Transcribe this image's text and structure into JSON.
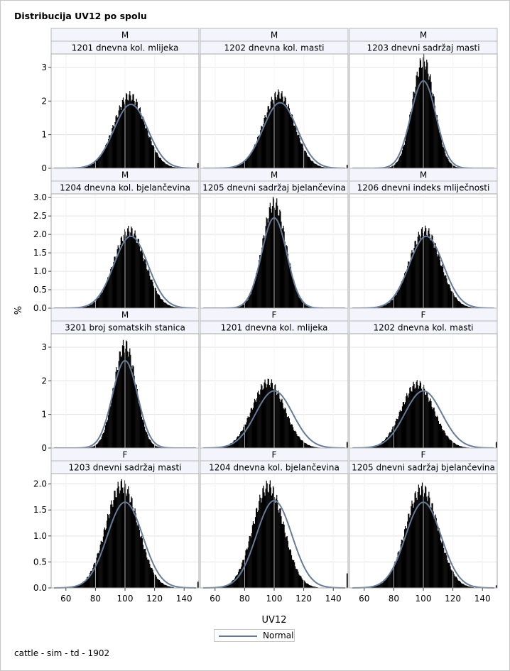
{
  "title": "Distribucija UV12 po spolu",
  "footnote": "cattle - sim - td - 1902",
  "legend": {
    "label": "Normal"
  },
  "colors": {
    "histogram": "#000000",
    "normal_curve": "#667b9a",
    "grid": "#e3e3e3",
    "header_bg": "#f3f4fc"
  },
  "chart_data": {
    "type": "panel-histogram",
    "xlabel": "UV12",
    "ylabel": "%",
    "xlim": [
      50,
      150
    ],
    "xticks": [
      60,
      80,
      100,
      120,
      140
    ],
    "grid": true,
    "legend_position": "bottom",
    "rows": [
      {
        "ylim": [
          0,
          3.4
        ],
        "yticks": [
          0,
          1,
          2,
          3
        ],
        "tick_labels": [
          "0",
          "1",
          "2",
          "3"
        ]
      },
      {
        "ylim": [
          0,
          3.1
        ],
        "yticks": [
          0,
          0.5,
          1.0,
          1.5,
          2.0,
          2.5,
          3.0
        ],
        "tick_labels": [
          "0.0",
          "0.5",
          "1.0",
          "1.5",
          "2.0",
          "2.5",
          "3.0"
        ]
      },
      {
        "ylim": [
          0,
          3.4
        ],
        "yticks": [
          0,
          1,
          2,
          3
        ],
        "tick_labels": [
          "0",
          "1",
          "2",
          "3"
        ]
      },
      {
        "ylim": [
          0,
          2.2
        ],
        "yticks": [
          0,
          0.5,
          1.0,
          1.5,
          2.0
        ],
        "tick_labels": [
          "0.0",
          "0.5",
          "1.0",
          "1.5",
          "2.0"
        ]
      }
    ],
    "panels": [
      {
        "sex": "M",
        "label": "1201 dnevna kol. mlijeka",
        "hist_mean": 103,
        "hist_sd": 10.5,
        "hist_peak": 2.15,
        "normal_mean": 104,
        "normal_sd": 11.5,
        "normal_peak": 1.9,
        "tail_value": 0.15
      },
      {
        "sex": "M",
        "label": "1202 dnevna kol. masti",
        "hist_mean": 103,
        "hist_sd": 10.5,
        "hist_peak": 2.2,
        "normal_mean": 104,
        "normal_sd": 11.5,
        "normal_peak": 1.95,
        "tail_value": 0.1
      },
      {
        "sex": "M",
        "label": "1203 dnevni sadržaj masti",
        "hist_mean": 100,
        "hist_sd": 7.5,
        "hist_peak": 3.2,
        "normal_mean": 100,
        "normal_sd": 8.5,
        "normal_peak": 2.6,
        "tail_value": 0
      },
      {
        "sex": "M",
        "label": "1204 dnevna kol. bjelančevina",
        "hist_mean": 103,
        "hist_sd": 10.5,
        "hist_peak": 2.1,
        "normal_mean": 104,
        "normal_sd": 11.5,
        "normal_peak": 1.95,
        "tail_value": 0
      },
      {
        "sex": "M",
        "label": "1205 dnevni sadržaj bjelančevina",
        "hist_mean": 100,
        "hist_sd": 8,
        "hist_peak": 2.85,
        "normal_mean": 100,
        "normal_sd": 8.5,
        "normal_peak": 2.45,
        "tail_value": 0
      },
      {
        "sex": "M",
        "label": "1206 dnevni indeks mliječnosti",
        "hist_mean": 101,
        "hist_sd": 10.5,
        "hist_peak": 2.1,
        "normal_mean": 102,
        "normal_sd": 11.5,
        "normal_peak": 1.95,
        "tail_value": 0
      },
      {
        "sex": "M",
        "label": "3201 broj somatskih stanica",
        "hist_mean": 100,
        "hist_sd": 7.5,
        "hist_peak": 3.05,
        "normal_mean": 100,
        "normal_sd": 8.5,
        "normal_peak": 2.6,
        "tail_value": 0
      },
      {
        "sex": "F",
        "label": "1201 dnevna kol. mlijeka",
        "hist_mean": 96,
        "hist_sd": 11,
        "hist_peak": 1.95,
        "normal_mean": 100,
        "normal_sd": 12.5,
        "normal_peak": 1.7,
        "tail_value": 0.18
      },
      {
        "sex": "F",
        "label": "1202 dnevna kol. masti",
        "hist_mean": 96,
        "hist_sd": 11,
        "hist_peak": 1.9,
        "normal_mean": 100,
        "normal_sd": 12.5,
        "normal_peak": 1.7,
        "tail_value": 0.18
      },
      {
        "sex": "F",
        "label": "1203 dnevni sadržaj masti",
        "hist_mean": 98,
        "hist_sd": 11,
        "hist_peak": 1.97,
        "normal_mean": 100,
        "normal_sd": 12,
        "normal_peak": 1.65,
        "tail_value": 0.12
      },
      {
        "sex": "F",
        "label": "1204 dnevna kol. bjelančevina",
        "hist_mean": 96,
        "hist_sd": 10.5,
        "hist_peak": 1.95,
        "normal_mean": 100,
        "normal_sd": 12,
        "normal_peak": 1.68,
        "tail_value": 0.28
      },
      {
        "sex": "F",
        "label": "1205 dnevni sadržaj bjelančevina",
        "hist_mean": 99,
        "hist_sd": 11,
        "hist_peak": 1.9,
        "normal_mean": 100,
        "normal_sd": 12,
        "normal_peak": 1.65,
        "tail_value": 0.05
      }
    ]
  }
}
